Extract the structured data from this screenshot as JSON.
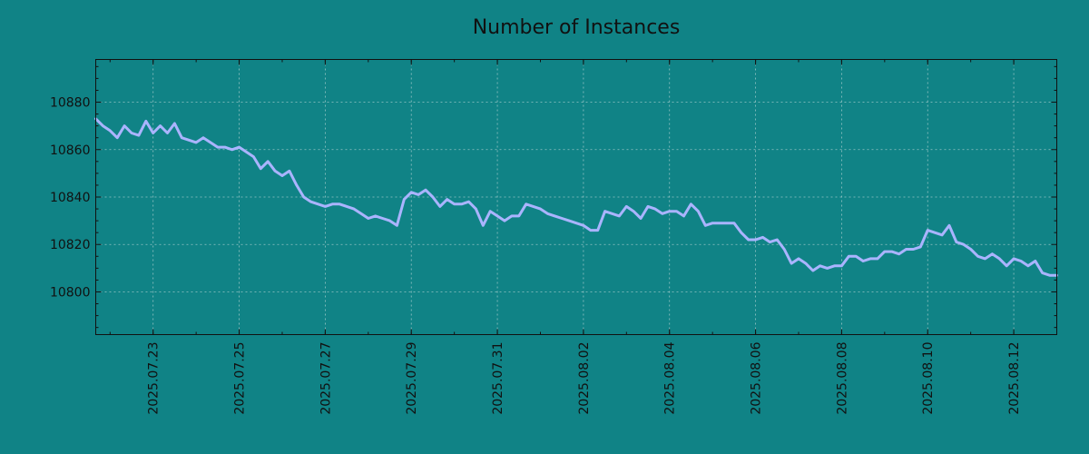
{
  "chart_data": {
    "type": "line",
    "title": "Number of Instances",
    "xlabel": "",
    "ylabel": "",
    "x_range": [
      "2025-07-21T16:00",
      "2025-08-13T00:00"
    ],
    "ylim": [
      10782,
      10898
    ],
    "y_ticks": [
      10800,
      10820,
      10840,
      10860,
      10880
    ],
    "x_ticks": [
      "2025.07.23",
      "2025.07.25",
      "2025.07.27",
      "2025.07.29",
      "2025.07.31",
      "2025.08.02",
      "2025.08.04",
      "2025.08.06",
      "2025.08.08",
      "2025.08.10",
      "2025.08.12"
    ],
    "grid": true,
    "legend": "none",
    "colors": {
      "background": "#108386",
      "line": "#aab4ff"
    },
    "series": [
      {
        "values": [
          [
            "2025-07-21T16:00",
            10873
          ],
          [
            "2025-07-21T20:00",
            10870
          ],
          [
            "2025-07-22T00:00",
            10868
          ],
          [
            "2025-07-22T04:00",
            10865
          ],
          [
            "2025-07-22T08:00",
            10870
          ],
          [
            "2025-07-22T12:00",
            10867
          ],
          [
            "2025-07-22T16:00",
            10866
          ],
          [
            "2025-07-22T20:00",
            10872
          ],
          [
            "2025-07-23T00:00",
            10867
          ],
          [
            "2025-07-23T04:00",
            10870
          ],
          [
            "2025-07-23T08:00",
            10867
          ],
          [
            "2025-07-23T12:00",
            10871
          ],
          [
            "2025-07-23T16:00",
            10865
          ],
          [
            "2025-07-23T20:00",
            10864
          ],
          [
            "2025-07-24T00:00",
            10863
          ],
          [
            "2025-07-24T04:00",
            10865
          ],
          [
            "2025-07-24T08:00",
            10863
          ],
          [
            "2025-07-24T12:00",
            10861
          ],
          [
            "2025-07-24T16:00",
            10861
          ],
          [
            "2025-07-24T20:00",
            10860
          ],
          [
            "2025-07-25T00:00",
            10861
          ],
          [
            "2025-07-25T04:00",
            10859
          ],
          [
            "2025-07-25T08:00",
            10857
          ],
          [
            "2025-07-25T12:00",
            10852
          ],
          [
            "2025-07-25T16:00",
            10855
          ],
          [
            "2025-07-25T20:00",
            10851
          ],
          [
            "2025-07-26T00:00",
            10849
          ],
          [
            "2025-07-26T04:00",
            10851
          ],
          [
            "2025-07-26T08:00",
            10845
          ],
          [
            "2025-07-26T12:00",
            10840
          ],
          [
            "2025-07-26T16:00",
            10838
          ],
          [
            "2025-07-26T20:00",
            10837
          ],
          [
            "2025-07-27T00:00",
            10836
          ],
          [
            "2025-07-27T04:00",
            10837
          ],
          [
            "2025-07-27T08:00",
            10837
          ],
          [
            "2025-07-27T12:00",
            10836
          ],
          [
            "2025-07-27T16:00",
            10835
          ],
          [
            "2025-07-27T20:00",
            10833
          ],
          [
            "2025-07-28T00:00",
            10831
          ],
          [
            "2025-07-28T04:00",
            10832
          ],
          [
            "2025-07-28T08:00",
            10831
          ],
          [
            "2025-07-28T12:00",
            10830
          ],
          [
            "2025-07-28T16:00",
            10828
          ],
          [
            "2025-07-28T20:00",
            10839
          ],
          [
            "2025-07-29T00:00",
            10842
          ],
          [
            "2025-07-29T04:00",
            10841
          ],
          [
            "2025-07-29T08:00",
            10843
          ],
          [
            "2025-07-29T12:00",
            10840
          ],
          [
            "2025-07-29T16:00",
            10836
          ],
          [
            "2025-07-29T20:00",
            10839
          ],
          [
            "2025-07-30T00:00",
            10837
          ],
          [
            "2025-07-30T04:00",
            10837
          ],
          [
            "2025-07-30T08:00",
            10838
          ],
          [
            "2025-07-30T12:00",
            10835
          ],
          [
            "2025-07-30T16:00",
            10828
          ],
          [
            "2025-07-30T20:00",
            10834
          ],
          [
            "2025-07-31T00:00",
            10832
          ],
          [
            "2025-07-31T04:00",
            10830
          ],
          [
            "2025-07-31T08:00",
            10832
          ],
          [
            "2025-07-31T12:00",
            10832
          ],
          [
            "2025-07-31T16:00",
            10837
          ],
          [
            "2025-07-31T20:00",
            10836
          ],
          [
            "2025-08-01T00:00",
            10835
          ],
          [
            "2025-08-01T04:00",
            10833
          ],
          [
            "2025-08-01T08:00",
            10832
          ],
          [
            "2025-08-01T12:00",
            10831
          ],
          [
            "2025-08-01T16:00",
            10830
          ],
          [
            "2025-08-01T20:00",
            10829
          ],
          [
            "2025-08-02T00:00",
            10828
          ],
          [
            "2025-08-02T04:00",
            10826
          ],
          [
            "2025-08-02T08:00",
            10826
          ],
          [
            "2025-08-02T12:00",
            10834
          ],
          [
            "2025-08-02T16:00",
            10833
          ],
          [
            "2025-08-02T20:00",
            10832
          ],
          [
            "2025-08-03T00:00",
            10836
          ],
          [
            "2025-08-03T04:00",
            10834
          ],
          [
            "2025-08-03T08:00",
            10831
          ],
          [
            "2025-08-03T12:00",
            10836
          ],
          [
            "2025-08-03T16:00",
            10835
          ],
          [
            "2025-08-03T20:00",
            10833
          ],
          [
            "2025-08-04T00:00",
            10834
          ],
          [
            "2025-08-04T04:00",
            10834
          ],
          [
            "2025-08-04T08:00",
            10832
          ],
          [
            "2025-08-04T12:00",
            10837
          ],
          [
            "2025-08-04T16:00",
            10834
          ],
          [
            "2025-08-04T20:00",
            10828
          ],
          [
            "2025-08-05T00:00",
            10829
          ],
          [
            "2025-08-05T04:00",
            10829
          ],
          [
            "2025-08-05T08:00",
            10829
          ],
          [
            "2025-08-05T12:00",
            10829
          ],
          [
            "2025-08-05T16:00",
            10825
          ],
          [
            "2025-08-05T20:00",
            10822
          ],
          [
            "2025-08-06T00:00",
            10822
          ],
          [
            "2025-08-06T04:00",
            10823
          ],
          [
            "2025-08-06T08:00",
            10821
          ],
          [
            "2025-08-06T12:00",
            10822
          ],
          [
            "2025-08-06T16:00",
            10818
          ],
          [
            "2025-08-06T20:00",
            10812
          ],
          [
            "2025-08-07T00:00",
            10814
          ],
          [
            "2025-08-07T04:00",
            10812
          ],
          [
            "2025-08-07T08:00",
            10809
          ],
          [
            "2025-08-07T12:00",
            10811
          ],
          [
            "2025-08-07T16:00",
            10810
          ],
          [
            "2025-08-07T20:00",
            10811
          ],
          [
            "2025-08-08T00:00",
            10811
          ],
          [
            "2025-08-08T04:00",
            10815
          ],
          [
            "2025-08-08T08:00",
            10815
          ],
          [
            "2025-08-08T12:00",
            10813
          ],
          [
            "2025-08-08T16:00",
            10814
          ],
          [
            "2025-08-08T20:00",
            10814
          ],
          [
            "2025-08-09T00:00",
            10817
          ],
          [
            "2025-08-09T04:00",
            10817
          ],
          [
            "2025-08-09T08:00",
            10816
          ],
          [
            "2025-08-09T12:00",
            10818
          ],
          [
            "2025-08-09T16:00",
            10818
          ],
          [
            "2025-08-09T20:00",
            10819
          ],
          [
            "2025-08-10T00:00",
            10826
          ],
          [
            "2025-08-10T04:00",
            10825
          ],
          [
            "2025-08-10T08:00",
            10824
          ],
          [
            "2025-08-10T12:00",
            10828
          ],
          [
            "2025-08-10T16:00",
            10821
          ],
          [
            "2025-08-10T20:00",
            10820
          ],
          [
            "2025-08-11T00:00",
            10818
          ],
          [
            "2025-08-11T04:00",
            10815
          ],
          [
            "2025-08-11T08:00",
            10814
          ],
          [
            "2025-08-11T12:00",
            10816
          ],
          [
            "2025-08-11T16:00",
            10814
          ],
          [
            "2025-08-11T20:00",
            10811
          ],
          [
            "2025-08-12T00:00",
            10814
          ],
          [
            "2025-08-12T04:00",
            10813
          ],
          [
            "2025-08-12T08:00",
            10811
          ],
          [
            "2025-08-12T12:00",
            10813
          ],
          [
            "2025-08-12T16:00",
            10808
          ],
          [
            "2025-08-12T20:00",
            10807
          ],
          [
            "2025-08-13T00:00",
            10807
          ]
        ]
      }
    ]
  }
}
